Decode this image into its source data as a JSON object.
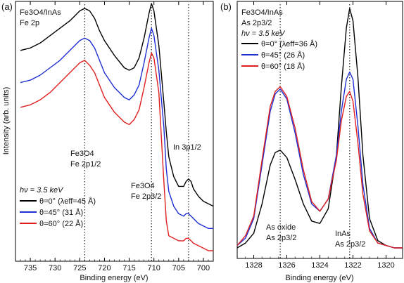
{
  "figure": {
    "y_axis_label": "Intensity (arb. units)"
  },
  "chart_data": [
    {
      "type": "line",
      "panel_label": "(a)",
      "sample_line1": "Fe3O4/InAs",
      "sample_line2": "Fe 2p",
      "xlabel": "Binding energy (eV)",
      "ylabel": "Intensity (arb. units)",
      "xlim": [
        738,
        698
      ],
      "x_reversed": true,
      "xticks": [
        735,
        730,
        725,
        720,
        715,
        710,
        705,
        700
      ],
      "ylim": [
        0,
        1
      ],
      "y_ticks_shown": false,
      "legend_title": "hν = 3.5 keV",
      "legend_entries": [
        "θ=0° (λeff=45 Å)",
        "θ=45° (31 Å)",
        "θ=60° (22 Å)"
      ],
      "legend_position": "lower-left",
      "annotations": [
        {
          "line1": "Fe3O4",
          "line2": "Fe 2p1/2",
          "x": 724
        },
        {
          "line1": "Fe3O4",
          "line2": "Fe 2p3/2",
          "x": 710.5
        },
        {
          "line1": "In 3p1/2",
          "x": 703
        }
      ],
      "reference_lines_x": [
        724,
        710.5,
        703
      ],
      "series": [
        {
          "name": "θ=0° (λeff=45 Å)",
          "color": "#000000",
          "x": [
            737,
            735,
            733,
            731,
            729,
            727,
            726,
            725,
            724,
            723,
            722,
            721,
            720,
            718,
            716,
            715,
            714,
            713,
            712,
            711,
            710.5,
            710,
            709,
            708,
            707.5,
            707,
            706,
            705,
            704,
            703.5,
            703,
            702.5,
            702,
            701,
            700,
            699,
            698
          ],
          "y": [
            0.83,
            0.84,
            0.86,
            0.89,
            0.92,
            0.95,
            0.97,
            0.99,
            1.0,
            0.99,
            0.96,
            0.91,
            0.87,
            0.81,
            0.76,
            0.75,
            0.76,
            0.8,
            0.88,
            0.98,
            1.02,
            0.99,
            0.85,
            0.62,
            0.5,
            0.4,
            0.32,
            0.28,
            0.28,
            0.3,
            0.31,
            0.3,
            0.27,
            0.24,
            0.22,
            0.21,
            0.2
          ]
        },
        {
          "name": "θ=45° (31 Å)",
          "color": "#1f2fd4",
          "x": [
            737,
            735,
            733,
            731,
            729,
            727,
            726,
            725,
            724,
            723,
            722,
            721,
            720,
            718,
            716,
            715,
            714,
            713,
            712,
            711,
            710.5,
            710,
            709,
            708,
            707.5,
            707,
            706,
            705,
            704,
            703.5,
            703,
            702.5,
            702,
            701,
            700,
            699,
            698
          ],
          "y": [
            0.7,
            0.71,
            0.73,
            0.76,
            0.79,
            0.83,
            0.85,
            0.87,
            0.88,
            0.87,
            0.84,
            0.79,
            0.74,
            0.68,
            0.64,
            0.63,
            0.65,
            0.69,
            0.78,
            0.88,
            0.92,
            0.89,
            0.75,
            0.52,
            0.35,
            0.26,
            0.2,
            0.17,
            0.16,
            0.17,
            0.17,
            0.16,
            0.15,
            0.13,
            0.12,
            0.11,
            0.11
          ]
        },
        {
          "name": "θ=60° (22 Å)",
          "color": "#e02020",
          "x": [
            737,
            735,
            733,
            731,
            729,
            727,
            726,
            725,
            724,
            723,
            722,
            721,
            720,
            718,
            716,
            715,
            714,
            713,
            712,
            711,
            710.5,
            710,
            709,
            708,
            707.5,
            707,
            706,
            705,
            704,
            703.5,
            703,
            702.5,
            702,
            701,
            700,
            699,
            698
          ],
          "y": [
            0.6,
            0.61,
            0.63,
            0.66,
            0.7,
            0.74,
            0.76,
            0.78,
            0.79,
            0.77,
            0.74,
            0.69,
            0.64,
            0.58,
            0.54,
            0.53,
            0.55,
            0.59,
            0.68,
            0.78,
            0.82,
            0.8,
            0.66,
            0.3,
            0.14,
            0.08,
            0.07,
            0.06,
            0.06,
            0.07,
            0.07,
            0.06,
            0.05,
            0.04,
            0.03,
            0.02,
            0.02
          ]
        }
      ]
    },
    {
      "type": "line",
      "panel_label": "(b)",
      "sample_line1": "Fe3O4/InAs",
      "sample_line2": "As 2p3/2",
      "xlabel": "Binding energy (eV)",
      "xlim": [
        1329,
        1319
      ],
      "x_reversed": true,
      "xticks": [
        1328,
        1326,
        1324,
        1322,
        1320
      ],
      "ylim": [
        0,
        1
      ],
      "y_ticks_shown": false,
      "legend_title": "hν = 3.5 keV",
      "legend_entries": [
        "θ=0° (λeff=36 Å)",
        "θ=45° (26 Å)",
        "θ=60° (18 Å)"
      ],
      "legend_position": "upper-left",
      "annotations": [
        {
          "line1": "As oxide",
          "line2": "As 2p3/2",
          "x": 1326.4
        },
        {
          "line1": "InAs",
          "line2": "As 2p3/2",
          "x": 1322.2
        }
      ],
      "reference_lines_x": [
        1326.4,
        1322.2
      ],
      "series": [
        {
          "name": "θ=0° (λeff=36 Å)",
          "color": "#000000",
          "x": [
            1329,
            1328.5,
            1328,
            1327.5,
            1327,
            1326.7,
            1326.4,
            1326,
            1325.5,
            1325,
            1324.5,
            1324,
            1323.5,
            1323,
            1322.7,
            1322.4,
            1322.2,
            1322,
            1321.7,
            1321.4,
            1321,
            1320.5,
            1320,
            1319.5,
            1319
          ],
          "y": [
            0.02,
            0.04,
            0.08,
            0.2,
            0.36,
            0.41,
            0.42,
            0.39,
            0.3,
            0.2,
            0.13,
            0.12,
            0.18,
            0.4,
            0.68,
            0.92,
            1.0,
            0.95,
            0.72,
            0.4,
            0.14,
            0.05,
            0.03,
            0.02,
            0.02
          ]
        },
        {
          "name": "θ=45° (26 Å)",
          "color": "#1f2fd4",
          "x": [
            1329,
            1328.5,
            1328,
            1327.5,
            1327,
            1326.7,
            1326.4,
            1326,
            1325.5,
            1325,
            1324.5,
            1324,
            1323.5,
            1323,
            1322.7,
            1322.4,
            1322.2,
            1322,
            1321.7,
            1321.4,
            1321,
            1320.5,
            1320,
            1319.5,
            1319
          ],
          "y": [
            0.03,
            0.06,
            0.14,
            0.36,
            0.58,
            0.65,
            0.67,
            0.63,
            0.49,
            0.32,
            0.2,
            0.17,
            0.22,
            0.4,
            0.58,
            0.71,
            0.74,
            0.71,
            0.52,
            0.28,
            0.1,
            0.04,
            0.03,
            0.02,
            0.02
          ]
        },
        {
          "name": "θ=60° (18 Å)",
          "color": "#e02020",
          "x": [
            1329,
            1328.5,
            1328,
            1327.5,
            1327,
            1326.7,
            1326.4,
            1326,
            1325.5,
            1325,
            1324.5,
            1324,
            1323.5,
            1323,
            1322.7,
            1322.4,
            1322.2,
            1322,
            1321.7,
            1321.4,
            1321,
            1320.5,
            1320,
            1319.5,
            1319
          ],
          "y": [
            0.03,
            0.07,
            0.15,
            0.38,
            0.6,
            0.66,
            0.68,
            0.64,
            0.51,
            0.34,
            0.21,
            0.17,
            0.22,
            0.38,
            0.54,
            0.64,
            0.66,
            0.62,
            0.45,
            0.24,
            0.09,
            0.04,
            0.03,
            0.02,
            0.02
          ]
        }
      ]
    }
  ]
}
